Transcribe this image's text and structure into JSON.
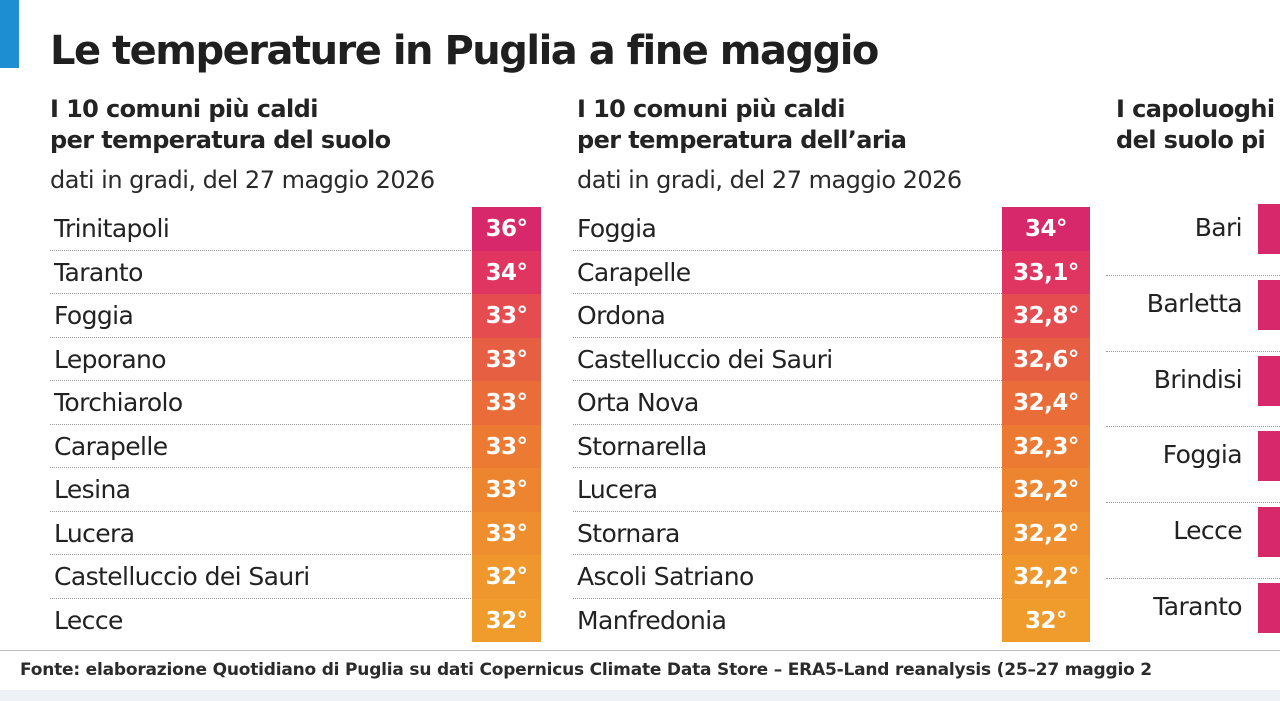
{
  "title": "Le temperature in Puglia a fine maggio",
  "colors": {
    "accent_blue": "#1e8ed2",
    "heat_scale": [
      "#d6286a",
      "#df3560",
      "#e54c4f",
      "#e75f43",
      "#ea6d39",
      "#ec7a32",
      "#ed8530",
      "#ee8e2e",
      "#ef962d",
      "#ef9c2c"
    ]
  },
  "chart_data": [
    {
      "type": "table",
      "title": [
        "I 10 comuni più caldi",
        "per temperatura del suolo"
      ],
      "subtitle": "dati in gradi, del 27 maggio 2026",
      "rows": [
        {
          "name": "Trinitapoli",
          "value": 36,
          "label": "36°"
        },
        {
          "name": "Taranto",
          "value": 34,
          "label": "34°"
        },
        {
          "name": "Foggia",
          "value": 33,
          "label": "33°"
        },
        {
          "name": "Leporano",
          "value": 33,
          "label": "33°"
        },
        {
          "name": "Torchiarolo",
          "value": 33,
          "label": "33°"
        },
        {
          "name": "Carapelle",
          "value": 33,
          "label": "33°"
        },
        {
          "name": "Lesina",
          "value": 33,
          "label": "33°"
        },
        {
          "name": "Lucera",
          "value": 33,
          "label": "33°"
        },
        {
          "name": "Castelluccio dei Sauri",
          "value": 32,
          "label": "32°"
        },
        {
          "name": "Lecce",
          "value": 32,
          "label": "32°"
        }
      ]
    },
    {
      "type": "table",
      "title": [
        "I 10 comuni più caldi",
        "per temperatura dell’aria"
      ],
      "subtitle": "dati in gradi, del 27 maggio 2026",
      "rows": [
        {
          "name": "Foggia",
          "value": 34,
          "label": "34°"
        },
        {
          "name": "Carapelle",
          "value": 33.1,
          "label": "33,1°"
        },
        {
          "name": "Ordona",
          "value": 32.8,
          "label": "32,8°"
        },
        {
          "name": "Castelluccio dei Sauri",
          "value": 32.6,
          "label": "32,6°"
        },
        {
          "name": "Orta Nova",
          "value": 32.4,
          "label": "32,4°"
        },
        {
          "name": "Stornarella",
          "value": 32.3,
          "label": "32,3°"
        },
        {
          "name": "Lucera",
          "value": 32.2,
          "label": "32,2°"
        },
        {
          "name": "Stornara",
          "value": 32.2,
          "label": "32,2°"
        },
        {
          "name": "Ascoli Satriano",
          "value": 32.2,
          "label": "32,2°"
        },
        {
          "name": "Manfredonia",
          "value": 32,
          "label": "32°"
        }
      ]
    },
    {
      "type": "bar",
      "title": [
        "I capoluoghi",
        "del suolo pi"
      ],
      "categories": [
        "Bari",
        "Barletta",
        "Brindisi",
        "Foggia",
        "Lecce",
        "Taranto"
      ]
    }
  ],
  "source": "Fonte: elaborazione Quotidiano di Puglia su dati Copernicus Climate Data Store – ERA5-Land reanalysis (25–27 maggio 2"
}
